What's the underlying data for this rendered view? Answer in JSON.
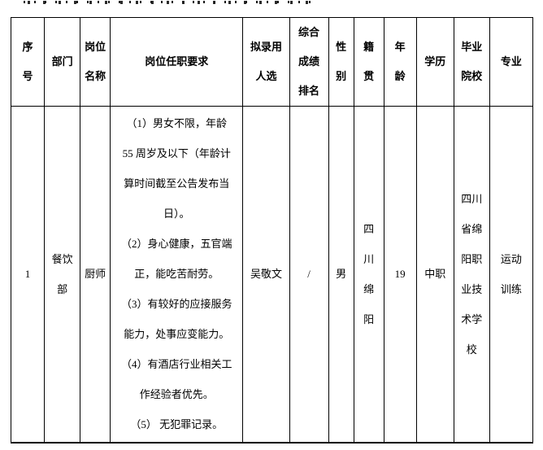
{
  "page": {
    "note": "top line of text clipped by screenshot edge"
  },
  "table": {
    "headers": {
      "index": [
        "序",
        "号"
      ],
      "department": [
        "部门"
      ],
      "position": [
        "岗位",
        "名称"
      ],
      "requirements": [
        "岗位任职要求"
      ],
      "candidate": [
        "拟录用",
        "人选"
      ],
      "score_rank": [
        "综合",
        "成绩",
        "排名"
      ],
      "gender": [
        "性",
        "别"
      ],
      "native_place": [
        "籍",
        "贯"
      ],
      "age": [
        "年",
        "龄"
      ],
      "education": [
        "学历"
      ],
      "school": [
        "毕业",
        "院校"
      ],
      "major": [
        "专业"
      ]
    },
    "row1": {
      "index": [
        "1"
      ],
      "department": [
        "餐饮",
        "部"
      ],
      "position": [
        "厨师"
      ],
      "requirements": [
        "（1）男女不限，年龄",
        "55 周岁及以下（年龄计",
        "算时间截至公告发布当",
        "日）。",
        "（2）身心健康，五官端",
        "正，能吃苦耐劳。",
        "（3）有较好的应接服务",
        "能力，处事应变能力。",
        "（4）有酒店行业相关工",
        "作经验者优先。",
        "（5） 无犯罪记录。"
      ],
      "candidate": [
        "吴敬文"
      ],
      "score_rank": [
        "/"
      ],
      "gender": [
        "男"
      ],
      "native_place": [
        "四",
        "川",
        "绵",
        "阳"
      ],
      "age": [
        "19"
      ],
      "education": [
        "中职"
      ],
      "school": [
        "四川",
        "省绵",
        "阳职",
        "业技",
        "术学",
        "校"
      ],
      "major": [
        "运动",
        "训练"
      ]
    },
    "colors": {
      "border": "#000000",
      "text": "#000000",
      "background": "#ffffff"
    }
  }
}
